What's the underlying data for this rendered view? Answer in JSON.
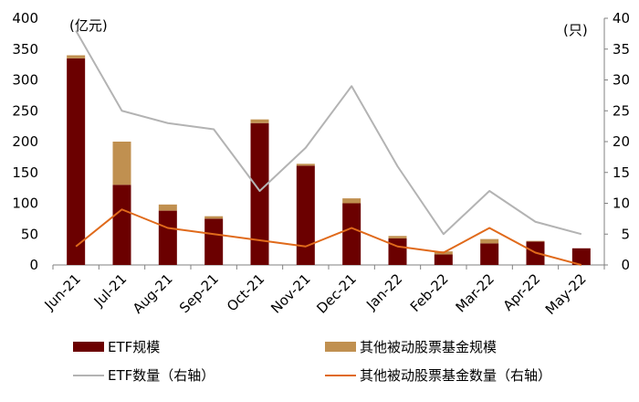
{
  "chart_data": {
    "type": "bar",
    "categories": [
      "Jun-21",
      "Jul-21",
      "Aug-21",
      "Sep-21",
      "Oct-21",
      "Nov-21",
      "Dec-21",
      "Jan-22",
      "Feb-22",
      "Mar-22",
      "Apr-22",
      "May-22"
    ],
    "left_unit": "(亿元)",
    "right_unit": "(只)",
    "ylim_left": [
      0,
      400
    ],
    "ylim_right": [
      0,
      40
    ],
    "yticks_left": [
      "0",
      "50",
      "100",
      "150",
      "200",
      "250",
      "300",
      "350",
      "400"
    ],
    "yticks_right": [
      "0",
      "5",
      "10",
      "15",
      "20",
      "25",
      "30",
      "35",
      "40"
    ],
    "stacked": true,
    "bar_series": [
      {
        "name": "ETF规模",
        "color": "#6b0000",
        "axis": "left",
        "values": [
          335,
          130,
          88,
          75,
          230,
          161,
          100,
          43,
          17,
          35,
          38,
          27
        ]
      },
      {
        "name": "其他被动股票基金规模",
        "color": "#c09050",
        "axis": "left",
        "values": [
          5,
          70,
          10,
          4,
          6,
          3,
          8,
          4,
          5,
          7,
          1,
          0
        ]
      }
    ],
    "line_series": [
      {
        "name": "ETF数量（右轴）",
        "color": "#b3b3b3",
        "axis": "right",
        "values": [
          38,
          25,
          23,
          22,
          12,
          19,
          29,
          16,
          5,
          12,
          7,
          5
        ]
      },
      {
        "name": "其他被动股票基金数量（右轴）",
        "color": "#e06a1b",
        "axis": "right",
        "values": [
          3,
          9,
          6,
          5,
          4,
          3,
          6,
          3,
          2,
          6,
          2,
          0
        ]
      }
    ],
    "legend_position": "bottom",
    "grid": false
  }
}
